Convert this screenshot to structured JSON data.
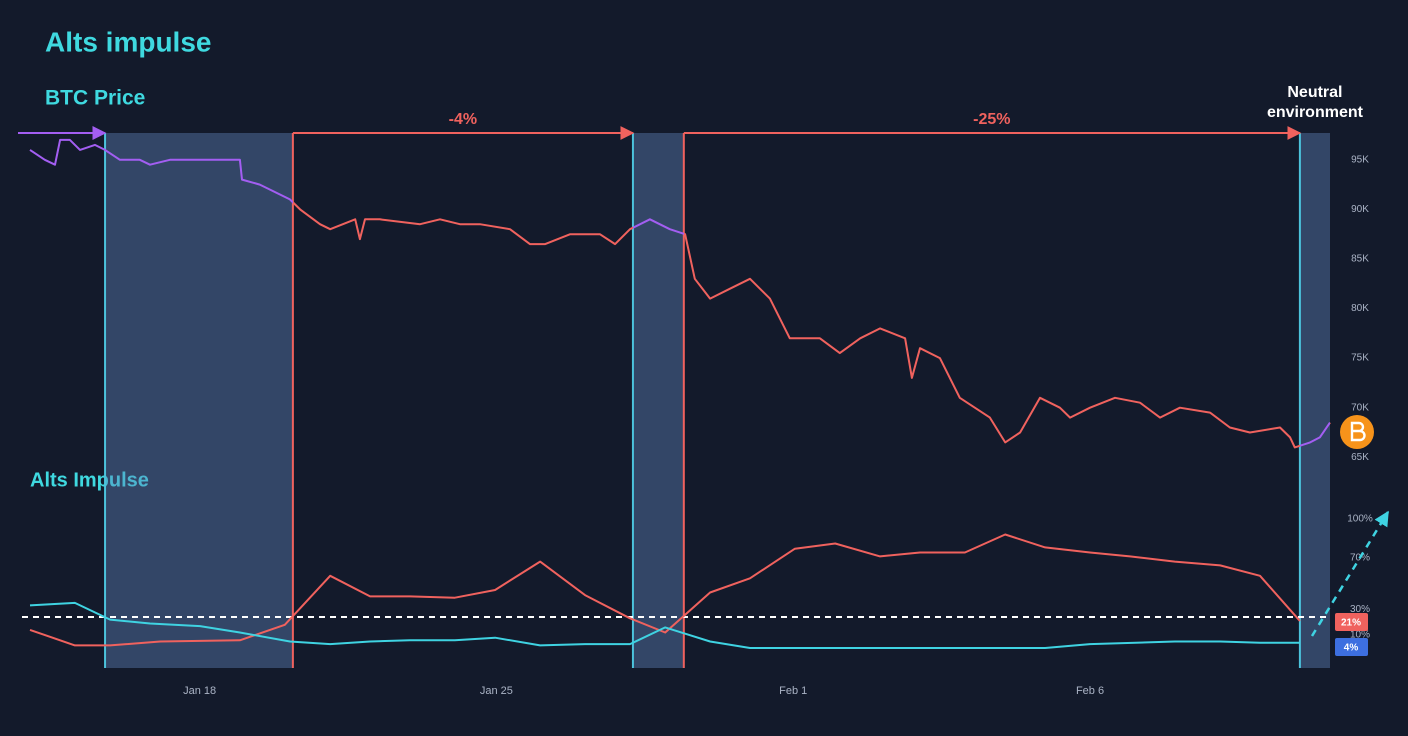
{
  "title": "Alts impulse",
  "chart_data": [
    {
      "type": "line",
      "title": "BTC Price",
      "xlim": [
        0,
        30.66
      ],
      "ylim": [
        61700,
        97700
      ],
      "yticks": [
        {
          "value": 95000,
          "label": "95K"
        },
        {
          "value": 90000,
          "label": "90K"
        },
        {
          "value": 85000,
          "label": "85K"
        },
        {
          "value": 80000,
          "label": "80K"
        },
        {
          "value": 75000,
          "label": "75K"
        },
        {
          "value": 70000,
          "label": "70K"
        },
        {
          "value": 65000,
          "label": "65K"
        }
      ],
      "shaded_ranges": [
        [
          1.77,
          6.2
        ],
        [
          14.22,
          15.42
        ],
        [
          29.95,
          30.66
        ]
      ],
      "annotations": [
        "-4%",
        "-25%"
      ],
      "neutral_label": [
        "Neutral",
        "environment"
      ],
      "series": [
        {
          "name": "BTC Price",
          "colors": [
            "#a35ef2",
            "#f0625e"
          ],
          "x": [
            0,
            0.35,
            0.59,
            0.71,
            0.94,
            1.18,
            1.53,
            1.77,
            2.12,
            2.59,
            2.83,
            3.3,
            4.01,
            4.95,
            5.0,
            5.42,
            6.13,
            6.37,
            6.84,
            7.08,
            7.67,
            7.78,
            7.9,
            8.25,
            9.2,
            9.67,
            10.14,
            10.61,
            11.32,
            11.79,
            12.15,
            12.74,
            13.44,
            13.8,
            14.15,
            14.62,
            15.09,
            15.45,
            15.68,
            16.04,
            16.51,
            16.98,
            17.45,
            17.92,
            18.63,
            19.1,
            19.58,
            20.05,
            20.64,
            20.8,
            20.99,
            21.46,
            21.93,
            22.64,
            23.0,
            23.35,
            23.82,
            24.29,
            24.53,
            25.0,
            25.59,
            26.18,
            26.65,
            27.12,
            27.83,
            28.3,
            28.77,
            29.48,
            29.72,
            29.83,
            30.19,
            30.42,
            30.66
          ],
          "values": [
            96000,
            95000,
            94500,
            97000,
            97000,
            96000,
            96500,
            96000,
            95000,
            95000,
            94500,
            95000,
            95000,
            95000,
            93000,
            92500,
            91000,
            90000,
            88500,
            88000,
            89000,
            87000,
            89000,
            89000,
            88500,
            89000,
            88500,
            88500,
            88000,
            86500,
            86500,
            87500,
            87500,
            86500,
            88000,
            89000,
            88000,
            87500,
            83000,
            81000,
            82000,
            83000,
            81000,
            77000,
            77000,
            75500,
            77000,
            78000,
            77000,
            73000,
            76000,
            75000,
            71000,
            69000,
            66500,
            67500,
            71000,
            70000,
            69000,
            70000,
            71000,
            70500,
            69000,
            70000,
            69500,
            68000,
            67500,
            68000,
            67000,
            66000,
            66500,
            67000,
            68500
          ]
        }
      ]
    },
    {
      "type": "line",
      "title": "Alts Impulse",
      "xlim": [
        0,
        30.66
      ],
      "ylim": [
        0,
        100
      ],
      "xticks": [
        {
          "value": 4,
          "label": "Jan 18"
        },
        {
          "value": 11,
          "label": "Jan 25"
        },
        {
          "value": 18,
          "label": "Feb 1"
        },
        {
          "value": 25,
          "label": "Feb 6"
        }
      ],
      "yticks": [
        {
          "value": 100,
          "label": "100%"
        },
        {
          "value": 70,
          "label": "70%"
        },
        {
          "value": 30,
          "label": "30%"
        },
        {
          "value": 10,
          "label": "10%"
        }
      ],
      "reference_line": 24,
      "series": [
        {
          "name": "red",
          "color": "#f0625e",
          "end_label": "21%",
          "x": [
            0,
            1.06,
            1.89,
            3.07,
            4.95,
            6.01,
            7.08,
            8.02,
            8.96,
            10.02,
            10.97,
            12.03,
            13.09,
            14.15,
            14.98,
            16.04,
            16.98,
            18.04,
            18.99,
            20.05,
            20.99,
            22.05,
            23.0,
            23.94,
            25.0,
            25.94,
            27.0,
            28.07,
            29.01,
            29.95
          ],
          "values": [
            14,
            2,
            2,
            5,
            6,
            18,
            56,
            40,
            40,
            39,
            45,
            67,
            41,
            23,
            12,
            43,
            54,
            77,
            81,
            71,
            74,
            74,
            88,
            78,
            74,
            71,
            67,
            64,
            56,
            21
          ]
        },
        {
          "name": "cyan",
          "color": "#3fd3e2",
          "end_label": "4%",
          "badge_color": "#3d6fe0",
          "x": [
            0,
            1.06,
            1.89,
            2.83,
            4.01,
            4.95,
            6.13,
            7.08,
            8.02,
            8.96,
            10.02,
            10.97,
            12.03,
            13.09,
            14.15,
            14.98,
            16.04,
            16.98,
            18.04,
            20.05,
            23.94,
            25.0,
            27.0,
            28.07,
            29.01,
            29.95
          ],
          "values": [
            33,
            35,
            22,
            19,
            17,
            12,
            5,
            3,
            5,
            6,
            6,
            8,
            2,
            3,
            3,
            16,
            5,
            0,
            0,
            0,
            0,
            3,
            5,
            5,
            4,
            4
          ]
        }
      ]
    }
  ]
}
